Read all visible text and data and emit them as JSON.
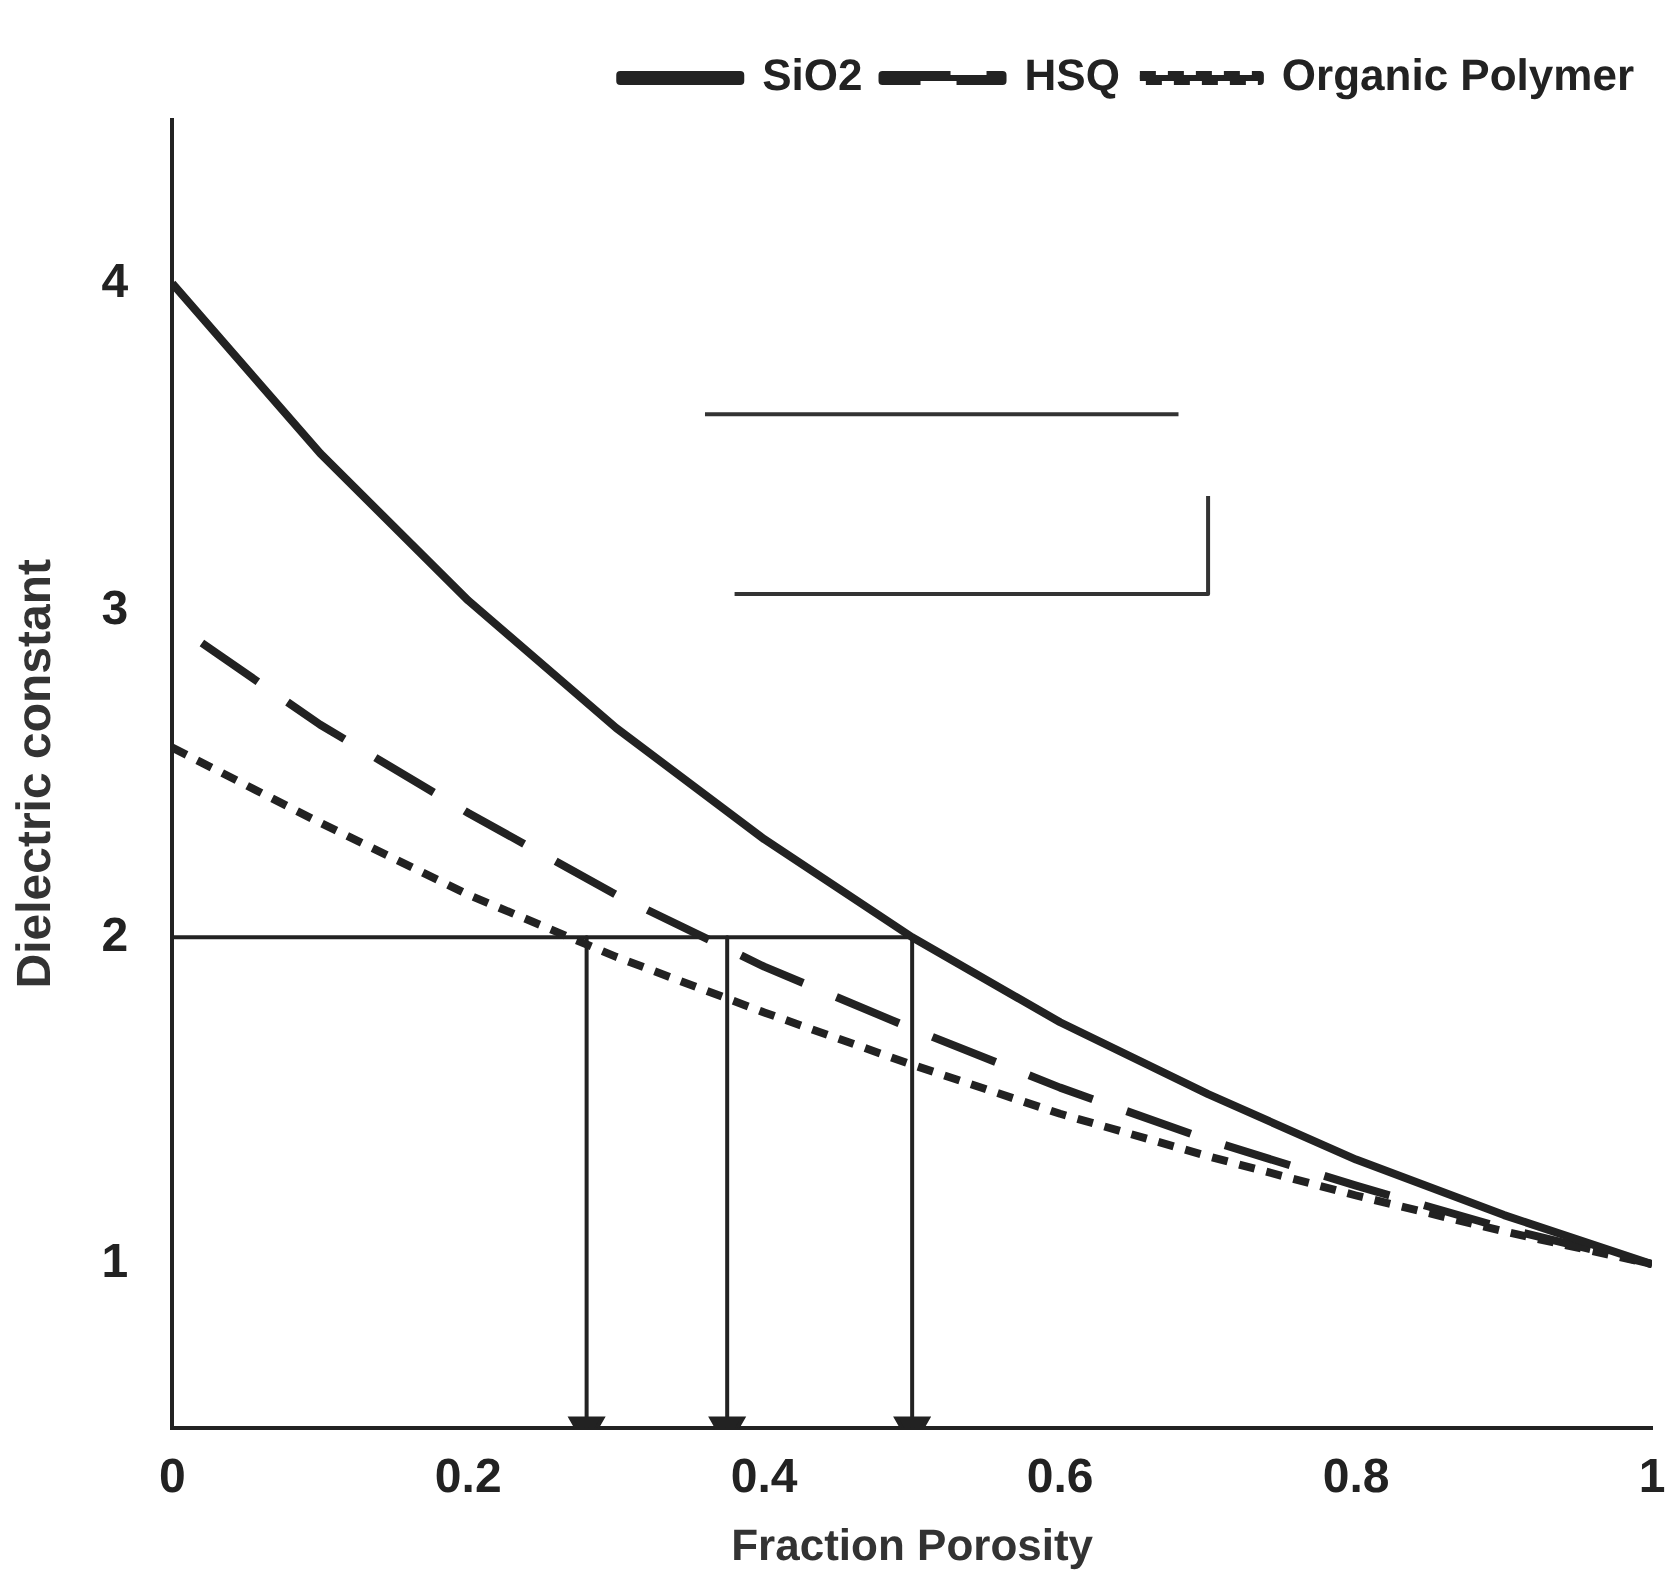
{
  "chart_data": {
    "type": "line",
    "xlabel": "Fraction Porosity",
    "ylabel": "Dielectric constant",
    "xlim": [
      0,
      1
    ],
    "ylim": [
      0.5,
      4.5
    ],
    "xticks": [
      0,
      0.2,
      0.4,
      0.6,
      0.8,
      1
    ],
    "yticks": [
      1,
      2,
      3,
      4
    ],
    "grid": false,
    "legend": "top right",
    "marker": "none",
    "series": [
      {
        "name": "SiO2",
        "color": "#222222",
        "line_style": "solid",
        "x": [
          0,
          0.1,
          0.2,
          0.3,
          0.4,
          0.5,
          0.6,
          0.7,
          0.8,
          0.9,
          1
        ],
        "values": [
          4,
          3.48,
          3.03,
          2.64,
          2.3,
          2,
          1.74,
          1.52,
          1.32,
          1.15,
          1
        ]
      },
      {
        "name": "HSQ",
        "color": "#222222",
        "line_style": "dashed",
        "x": [
          0.02,
          0.1,
          0.2,
          0.3,
          0.4,
          0.5,
          0.6,
          0.7,
          0.8,
          0.9,
          1
        ],
        "values": [
          2.9,
          2.65,
          2.38,
          2.13,
          1.91,
          1.72,
          1.54,
          1.38,
          1.24,
          1.11,
          1
        ]
      },
      {
        "name": "Organic Polymer",
        "color": "#222222",
        "line_style": "dotted",
        "x": [
          0,
          0.1,
          0.2,
          0.3,
          0.4,
          0.5,
          0.6,
          0.7,
          0.8,
          0.9,
          1
        ],
        "values": [
          2.58,
          2.35,
          2.13,
          1.94,
          1.77,
          1.61,
          1.46,
          1.33,
          1.21,
          1.1,
          1
        ]
      },
      {
        "color": "#222222",
        "line_style": "solid",
        "x": [
          0,
          0.5
        ],
        "values": [
          2,
          2
        ]
      },
      {
        "color": "#333333",
        "line_style": "solid",
        "x": [
          0.36,
          0.68
        ],
        "values": [
          3.6,
          3.6
        ]
      },
      {
        "color": "#333333",
        "line_style": "solid",
        "x": [
          0.38,
          0.7,
          0.7
        ],
        "values": [
          3.05,
          3.05,
          3.35
        ]
      },
      {
        "color": "#222222",
        "line_style": "solid",
        "marker": "triangle",
        "x": [
          0.28,
          0.28
        ],
        "values": [
          2,
          0.5
        ]
      },
      {
        "color": "#222222",
        "line_style": "solid",
        "marker": "triangle",
        "x": [
          0.375,
          0.375
        ],
        "values": [
          2,
          0.5
        ]
      },
      {
        "color": "#222222",
        "line_style": "solid",
        "marker": "triangle",
        "x": [
          0.5,
          0.5
        ],
        "values": [
          2,
          0.5
        ]
      }
    ]
  }
}
